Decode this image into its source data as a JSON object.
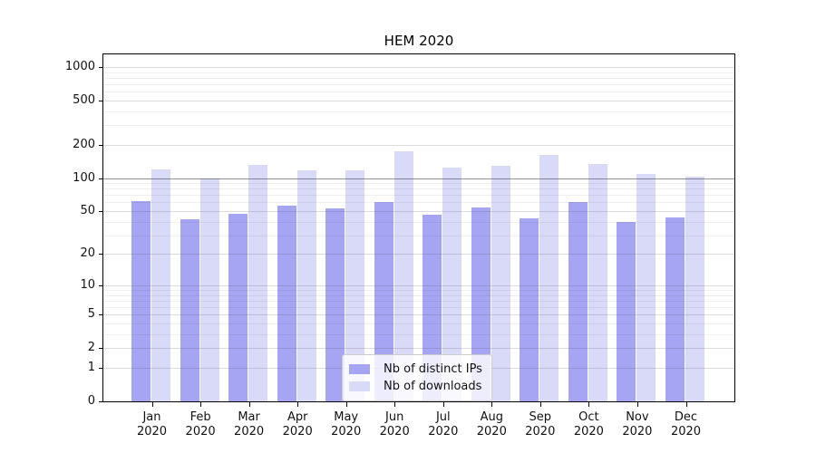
{
  "figure": {
    "background": "#ffffff"
  },
  "chart_data": {
    "type": "bar",
    "title": "HEM 2020",
    "yscale": "symlog",
    "xlabel": "",
    "ylabel": "",
    "categories": [
      "Jan",
      "Feb",
      "Mar",
      "Apr",
      "May",
      "Jun",
      "Jul",
      "Aug",
      "Sep",
      "Oct",
      "Nov",
      "Dec"
    ],
    "category_year": "2020",
    "series": [
      {
        "name": "Nb of distinct IPs",
        "color": "#a5a5f3",
        "values": [
          62,
          42,
          47,
          56,
          53,
          60,
          46,
          54,
          43,
          61,
          40,
          44
        ]
      },
      {
        "name": "Nb of downloads",
        "color": "#d9d9f8",
        "values": [
          119,
          99,
          132,
          118,
          117,
          173,
          125,
          129,
          163,
          134,
          109,
          102
        ]
      }
    ],
    "y_ticks": [
      1000,
      500,
      200,
      100,
      50,
      20,
      10,
      5,
      2,
      1,
      0
    ],
    "ylim": [
      0,
      1290
    ],
    "grid": true,
    "highlight_gridline": 100,
    "legend_position": "lower center",
    "axis_color": "#000000"
  }
}
